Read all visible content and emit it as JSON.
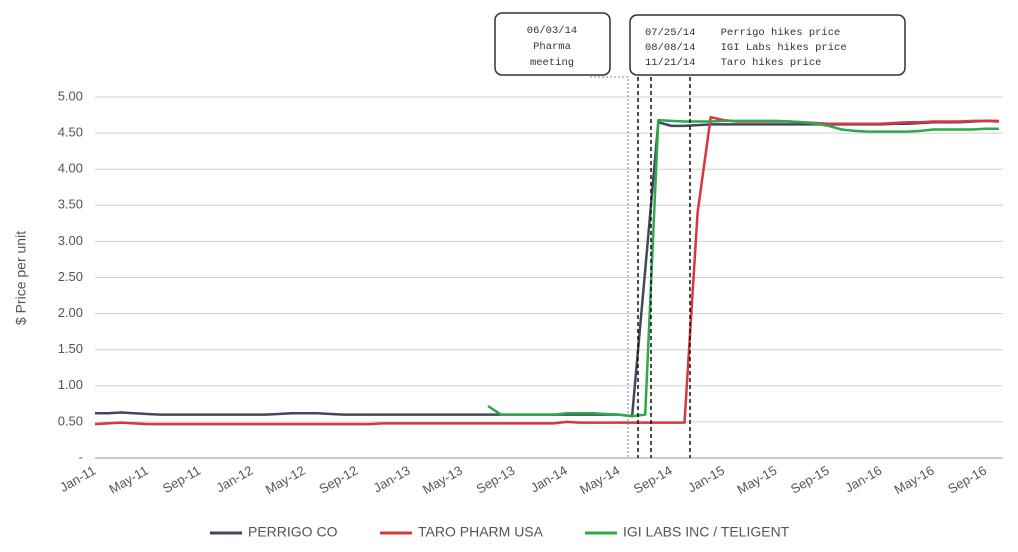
{
  "chart_data": {
    "type": "line",
    "ylabel": "$ Price per unit",
    "categories": [
      "Jan-11",
      null,
      null,
      null,
      "May-11",
      null,
      null,
      null,
      "Sep-11",
      null,
      null,
      null,
      "Jan-12",
      null,
      null,
      null,
      "May-12",
      null,
      null,
      null,
      "Sep-12",
      null,
      null,
      null,
      "Jan-13",
      null,
      null,
      null,
      "May-13",
      null,
      null,
      null,
      "Sep-13",
      null,
      null,
      null,
      "Jan-14",
      null,
      null,
      null,
      "May-14",
      null,
      null,
      null,
      "Sep-14",
      null,
      null,
      null,
      "Jan-15",
      null,
      null,
      null,
      "May-15",
      null,
      null,
      null,
      "Sep-15",
      null,
      null,
      null,
      "Jan-16",
      null,
      null,
      null,
      "May-16",
      null,
      null,
      null,
      "Sep-16",
      null
    ],
    "series": [
      {
        "name": "PERRIGO CO",
        "color": "#3d4a5c",
        "values": [
          0.62,
          0.62,
          0.63,
          0.62,
          0.61,
          0.6,
          0.6,
          0.6,
          0.6,
          0.6,
          0.6,
          0.6,
          0.6,
          0.6,
          0.61,
          0.62,
          0.62,
          0.62,
          0.61,
          0.6,
          0.6,
          0.6,
          0.6,
          0.6,
          0.6,
          0.6,
          0.6,
          0.6,
          0.6,
          0.6,
          0.6,
          0.6,
          0.6,
          0.6,
          0.6,
          0.6,
          0.6,
          0.6,
          0.6,
          0.6,
          0.6,
          0.58,
          2.6,
          4.65,
          4.6,
          4.6,
          4.61,
          4.62,
          4.62,
          4.62,
          4.62,
          4.62,
          4.62,
          4.62,
          4.62,
          4.62,
          4.62,
          4.62,
          4.62,
          4.62,
          4.62,
          4.63,
          4.63,
          4.64,
          4.65,
          4.65,
          4.65,
          4.66,
          4.67,
          4.66
        ]
      },
      {
        "name": "TARO PHARM USA",
        "color": "#d9363e",
        "values": [
          0.47,
          0.48,
          0.49,
          0.48,
          0.47,
          0.47,
          0.47,
          0.47,
          0.47,
          0.47,
          0.47,
          0.47,
          0.47,
          0.47,
          0.47,
          0.47,
          0.47,
          0.47,
          0.47,
          0.47,
          0.47,
          0.47,
          0.48,
          0.48,
          0.48,
          0.48,
          0.48,
          0.48,
          0.48,
          0.48,
          0.48,
          0.48,
          0.48,
          0.48,
          0.48,
          0.48,
          0.5,
          0.49,
          0.49,
          0.49,
          0.49,
          0.49,
          0.49,
          0.49,
          0.49,
          0.49,
          3.4,
          4.72,
          4.68,
          4.66,
          4.66,
          4.66,
          4.66,
          4.66,
          4.65,
          4.64,
          4.63,
          4.63,
          4.63,
          4.63,
          4.63,
          4.64,
          4.65,
          4.65,
          4.66,
          4.66,
          4.66,
          4.67,
          4.67,
          4.67
        ]
      },
      {
        "name": "IGI LABS INC / TELIGENT",
        "color": "#2ea84a",
        "values": [
          null,
          null,
          null,
          null,
          null,
          null,
          null,
          null,
          null,
          null,
          null,
          null,
          null,
          null,
          null,
          null,
          null,
          null,
          null,
          null,
          null,
          null,
          null,
          null,
          null,
          null,
          null,
          null,
          null,
          null,
          0.72,
          0.6,
          0.6,
          0.6,
          0.6,
          0.6,
          0.62,
          0.62,
          0.62,
          0.61,
          0.6,
          0.58,
          0.6,
          4.68,
          4.67,
          4.66,
          4.66,
          4.66,
          4.67,
          4.67,
          4.67,
          4.67,
          4.67,
          4.66,
          4.65,
          4.63,
          4.6,
          4.55,
          4.53,
          4.52,
          4.52,
          4.52,
          4.52,
          4.53,
          4.55,
          4.55,
          4.55,
          4.55,
          4.56,
          4.56
        ]
      }
    ],
    "ylim": [
      0,
      5
    ],
    "yticks": [
      {
        "value": 0,
        "label": "-"
      },
      {
        "value": 0.5,
        "label": "0.50"
      },
      {
        "value": 1,
        "label": "1.00"
      },
      {
        "value": 1.5,
        "label": "1.50"
      },
      {
        "value": 2,
        "label": "2.00"
      },
      {
        "value": 2.5,
        "label": "2.50"
      },
      {
        "value": 3,
        "label": "3.00"
      },
      {
        "value": 3.5,
        "label": "3.50"
      },
      {
        "value": 4,
        "label": "4.00"
      },
      {
        "value": 4.5,
        "label": "4.50"
      },
      {
        "value": 5,
        "label": "5.00"
      }
    ],
    "grid": true,
    "legend": "bottom",
    "annotations": [
      {
        "lines": [
          "06/03/14",
          "Pharma",
          "meeting"
        ]
      },
      {
        "lines": [
          "07/25/14    Perrigo hikes price",
          "08/08/14    IGI Labs hikes price",
          "11/21/14    Taro hikes price"
        ]
      }
    ]
  }
}
